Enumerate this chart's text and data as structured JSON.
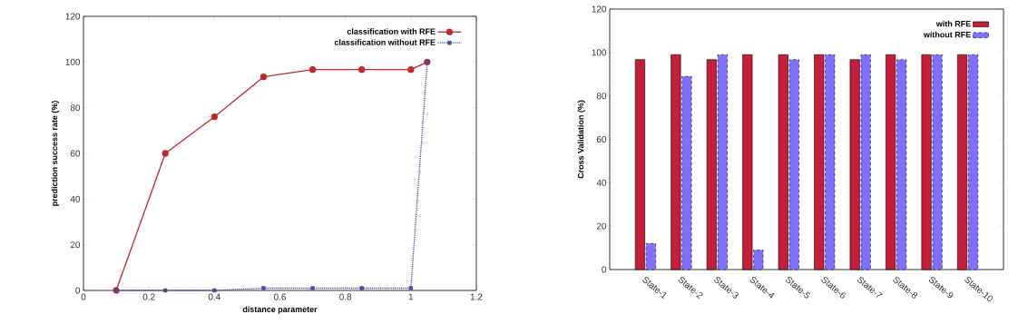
{
  "chart_data": [
    {
      "type": "line",
      "xlabel": "distance parameter",
      "ylabel": "prediction success rate (%)",
      "xlim": [
        0,
        1.2
      ],
      "xticks": [
        0,
        0.2,
        0.4,
        0.6,
        0.8,
        1,
        1.2
      ],
      "ylim": [
        0,
        120
      ],
      "yticks": [
        0,
        20,
        40,
        60,
        80,
        100,
        120
      ],
      "grid": false,
      "legend": "top right",
      "series": [
        {
          "name": "classification with RFE",
          "color": "#c0282d",
          "marker": "circle",
          "line_style": "solid",
          "x": [
            0.1,
            0.25,
            0.4,
            0.55,
            0.7,
            0.85,
            1.0,
            1.05
          ],
          "values": [
            0,
            60,
            76,
            93.5,
            96.7,
            96.7,
            96.7,
            100
          ]
        },
        {
          "name": "classification without RFE",
          "color": "#4a4aa8",
          "marker": "square",
          "line_style": "dotted",
          "x": [
            0.1,
            0.25,
            0.4,
            0.55,
            0.7,
            0.85,
            1.0,
            1.05
          ],
          "values": [
            0,
            0,
            0,
            1,
            1,
            1,
            1,
            100
          ]
        }
      ]
    },
    {
      "type": "bar",
      "ylabel": "Cross Validation (%)",
      "categories": [
        "State-1",
        "State-2",
        "State-3",
        "State-4",
        "State-5",
        "State-6",
        "State-7",
        "State-8",
        "State-9",
        "State-10"
      ],
      "ylim": [
        0,
        120
      ],
      "yticks": [
        0,
        20,
        40,
        60,
        80,
        100,
        120
      ],
      "grid": false,
      "legend": "top right",
      "series": [
        {
          "name": "with RFE",
          "color": "#c41e3a",
          "line_style": "solid",
          "values": [
            96.7,
            99,
            96.7,
            99,
            99,
            99,
            96.7,
            99,
            99,
            99
          ]
        },
        {
          "name": "without RFE",
          "color": "#7f6fff",
          "line_style": "dashed",
          "values": [
            12,
            89,
            99,
            9,
            96.7,
            99,
            99,
            96.7,
            99,
            99
          ]
        }
      ]
    }
  ]
}
